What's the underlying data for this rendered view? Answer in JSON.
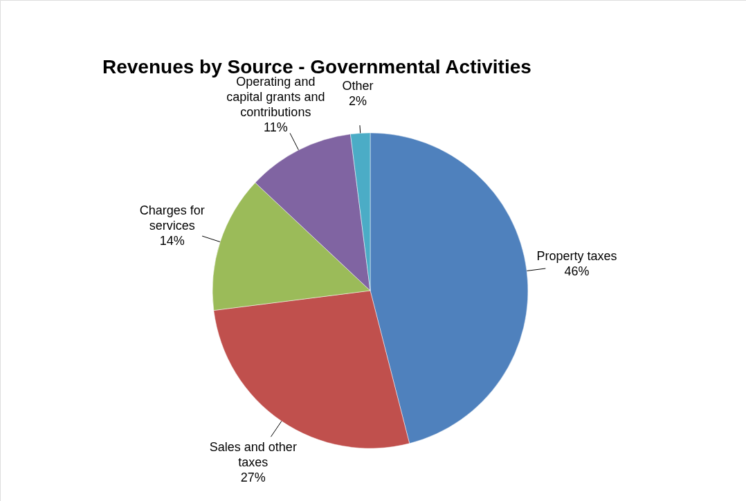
{
  "chart_data": {
    "type": "pie",
    "title": "Revenues by Source - Governmental Activities",
    "categories": [
      "Property taxes",
      "Sales and other taxes",
      "Charges for services",
      "Operating and capital grants and contributions",
      "Other"
    ],
    "values": [
      46,
      27,
      14,
      11,
      2
    ],
    "colors": [
      "#4f81bd",
      "#c0504d",
      "#9bbb59",
      "#8064a2",
      "#4bacc6"
    ],
    "value_labels": [
      "46%",
      "27%",
      "14%",
      "11%",
      "2%"
    ]
  }
}
